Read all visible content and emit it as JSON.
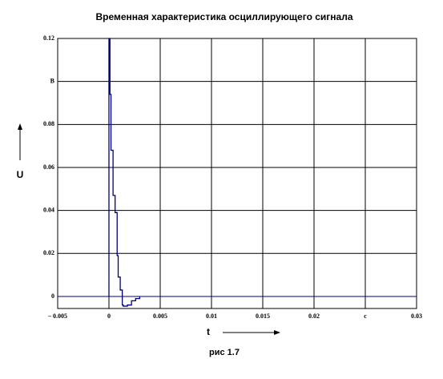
{
  "chart_data": {
    "type": "line",
    "title": "Временная характеристика осциллирующего сигнала",
    "xlabel": "t",
    "ylabel": "U",
    "caption": "рис 1.7",
    "step": true,
    "grid": true,
    "xlim": [
      -0.005,
      0.03
    ],
    "ylim": [
      -0.0056,
      0.12
    ],
    "xticks": [
      {
        "value": -0.005,
        "label": "– 0.005"
      },
      0,
      0.005,
      0.01,
      0.015,
      0.02,
      {
        "value": 0.025,
        "label": "c"
      },
      0.03
    ],
    "yticks": [
      0.12,
      {
        "value": 0.1,
        "label": "B"
      },
      0.08,
      0.06,
      0.04,
      0.02,
      0
    ],
    "series": [
      {
        "color": "#00007a",
        "x": [
          0,
          0,
          0.0001,
          0.0002,
          0.0004,
          0.0006,
          0.0008,
          0.0009,
          0.0011,
          0.0013,
          0.0014,
          0.0018,
          0.0022,
          0.0026,
          0.003
        ],
        "values": [
          0,
          0.12,
          0.094,
          0.068,
          0.047,
          0.039,
          0.019,
          0.009,
          0.003,
          -0.004,
          -0.0045,
          -0.004,
          -0.002,
          -0.001,
          0
        ]
      }
    ]
  }
}
